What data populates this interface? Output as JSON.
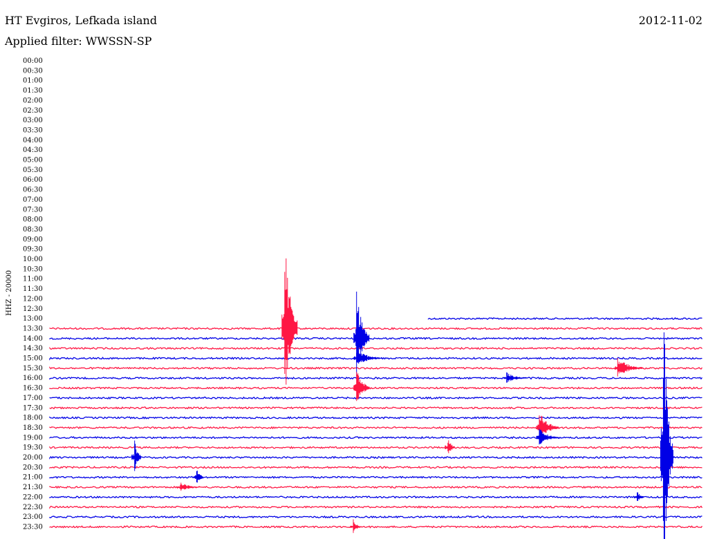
{
  "header": {
    "station": "HT Evgiros, Lefkada island",
    "date": "2012-11-02",
    "filter": "Applied filter: WWSSN-SP"
  },
  "colors": {
    "trace_a": "#ff1744",
    "trace_b": "#0000e6"
  },
  "chart_data": {
    "type": "line",
    "title": "HT Evgiros, Lefkada island",
    "ylabel": "HHZ - 20000",
    "time_labels": [
      "00:00",
      "00:30",
      "01:00",
      "01:30",
      "02:00",
      "02:30",
      "03:00",
      "03:30",
      "04:00",
      "04:30",
      "05:00",
      "05:30",
      "06:00",
      "06:30",
      "07:00",
      "07:30",
      "08:00",
      "08:30",
      "09:00",
      "09:30",
      "10:00",
      "10:30",
      "11:00",
      "11:30",
      "12:00",
      "12:30",
      "13:00",
      "13:30",
      "14:00",
      "14:30",
      "15:00",
      "15:30",
      "16:00",
      "16:30",
      "17:00",
      "17:30",
      "18:00",
      "18:30",
      "19:00",
      "19:30",
      "20:00",
      "20:30",
      "21:00",
      "21:30",
      "22:00",
      "22:30",
      "23:00",
      "23:30"
    ],
    "recording_starts_at": "13:00",
    "series_colors_alternate": [
      "#0000e6",
      "#ff1744"
    ],
    "events": [
      {
        "row": "13:30",
        "x": 0.36,
        "amp": 140,
        "dur": 0.02
      },
      {
        "row": "14:00",
        "x": 0.47,
        "amp": 70,
        "dur": 0.02
      },
      {
        "row": "15:00",
        "x": 0.47,
        "amp": 14,
        "dur": 0.04
      },
      {
        "row": "15:30",
        "x": 0.87,
        "amp": 16,
        "dur": 0.04
      },
      {
        "row": "16:00",
        "x": 0.7,
        "amp": 9,
        "dur": 0.03
      },
      {
        "row": "16:30",
        "x": 0.47,
        "amp": 30,
        "dur": 0.02
      },
      {
        "row": "18:30",
        "x": 0.75,
        "amp": 25,
        "dur": 0.03
      },
      {
        "row": "19:00",
        "x": 0.75,
        "amp": 14,
        "dur": 0.03
      },
      {
        "row": "19:30",
        "x": 0.61,
        "amp": 16,
        "dur": 0.01
      },
      {
        "row": "20:00",
        "x": 0.13,
        "amp": 28,
        "dur": 0.01
      },
      {
        "row": "20:00",
        "x": 0.94,
        "amp": 230,
        "dur": 0.015
      },
      {
        "row": "21:00",
        "x": 0.225,
        "amp": 15,
        "dur": 0.01
      },
      {
        "row": "21:30",
        "x": 0.2,
        "amp": 8,
        "dur": 0.03
      },
      {
        "row": "22:00",
        "x": 0.9,
        "amp": 10,
        "dur": 0.01
      },
      {
        "row": "23:30",
        "x": 0.465,
        "amp": 12,
        "dur": 0.01
      }
    ]
  }
}
